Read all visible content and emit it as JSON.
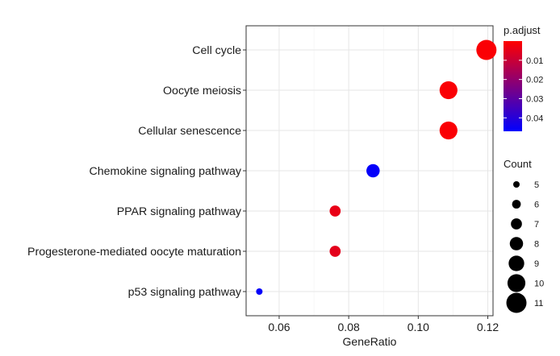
{
  "chart_data": {
    "type": "scatter",
    "title": "",
    "xlabel": "GeneRatio",
    "ylabel": "",
    "xlim": [
      0.0505,
      0.1215
    ],
    "x_ticks": [
      0.06,
      0.08,
      0.1,
      0.12
    ],
    "x_tick_labels": [
      "0.06",
      "0.08",
      "0.10",
      "0.12"
    ],
    "grid": true,
    "categories": [
      "Cell cycle",
      "Oocyte meiosis",
      "Cellular senescence",
      "Chemokine signaling pathway",
      "PPAR signaling pathway",
      "Progesterone-mediated oocyte maturation",
      "p53 signaling pathway"
    ],
    "points": [
      {
        "term": "Cell cycle",
        "gene_ratio": 0.1196,
        "count": 11,
        "p_adjust": 0.001
      },
      {
        "term": "Oocyte meiosis",
        "gene_ratio": 0.1087,
        "count": 10,
        "p_adjust": 0.001
      },
      {
        "term": "Cellular senescence",
        "gene_ratio": 0.1087,
        "count": 10,
        "p_adjust": 0.001
      },
      {
        "term": "Chemokine signaling pathway",
        "gene_ratio": 0.087,
        "count": 8,
        "p_adjust": 0.046
      },
      {
        "term": "PPAR signaling pathway",
        "gene_ratio": 0.0761,
        "count": 7,
        "p_adjust": 0.004
      },
      {
        "term": "Progesterone-mediated oocyte maturation",
        "gene_ratio": 0.0761,
        "count": 7,
        "p_adjust": 0.005
      },
      {
        "term": "p53 signaling pathway",
        "gene_ratio": 0.0543,
        "count": 5,
        "p_adjust": 0.046
      }
    ],
    "color_legend": {
      "title": "p.adjust",
      "placement": "right",
      "range": [
        0.0,
        0.047
      ],
      "low_color": "#ff0000",
      "high_color": "#0000ff",
      "ticks": [
        0.01,
        0.02,
        0.03,
        0.04
      ],
      "tick_labels": [
        "0.01",
        "0.02",
        "0.03",
        "0.04"
      ]
    },
    "size_legend": {
      "title": "Count",
      "placement": "right",
      "values": [
        5,
        6,
        7,
        8,
        9,
        10,
        11
      ],
      "labels": [
        "5",
        "6",
        "7",
        "8",
        "9",
        "10",
        "11"
      ]
    }
  }
}
